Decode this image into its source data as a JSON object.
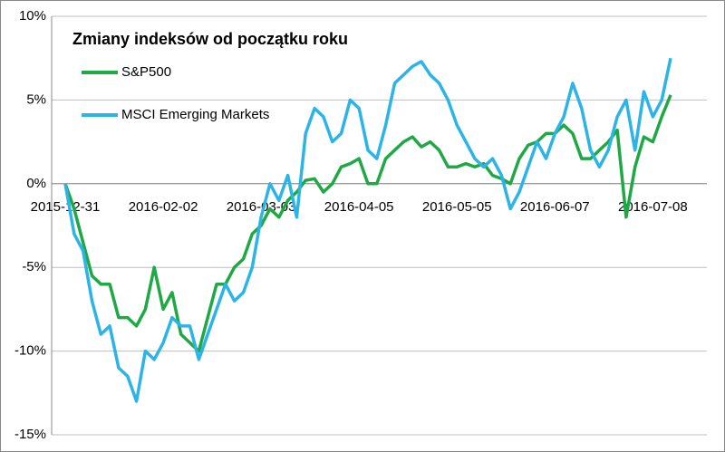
{
  "chart_data": {
    "type": "line",
    "title": "Zmiany indeksów od początku roku",
    "categories": [
      "2015-12-31",
      null,
      null,
      null,
      null,
      null,
      null,
      null,
      null,
      null,
      null,
      "2016-02-02",
      null,
      null,
      null,
      null,
      null,
      null,
      null,
      null,
      null,
      null,
      "2016-03-03",
      null,
      null,
      null,
      null,
      null,
      null,
      null,
      null,
      null,
      null,
      "2016-04-05",
      null,
      null,
      null,
      null,
      null,
      null,
      null,
      null,
      null,
      null,
      "2016-05-05",
      null,
      null,
      null,
      null,
      null,
      null,
      null,
      null,
      null,
      null,
      "2016-06-07",
      null,
      null,
      null,
      null,
      null,
      null,
      null,
      null,
      null,
      null,
      "2016-07-08",
      null,
      null
    ],
    "series": [
      {
        "name": "S&P500",
        "color": "#1fa845",
        "values": [
          0,
          -1.5,
          -3.5,
          -5.5,
          -6,
          -6,
          -8,
          -8,
          -8.5,
          -7.5,
          -5,
          -7.5,
          -6.5,
          -9,
          -9.5,
          -10,
          -8,
          -6,
          -6,
          -5,
          -4.5,
          -3,
          -2.5,
          -1.5,
          -2,
          -1,
          -0.5,
          0.2,
          0.3,
          -0.5,
          0,
          1,
          1.2,
          1.5,
          0,
          0,
          1.5,
          2,
          2.5,
          2.8,
          2.2,
          2.5,
          2,
          1,
          1,
          1.2,
          1,
          1.2,
          0.5,
          0.3,
          0,
          1.5,
          2.3,
          2.5,
          3,
          3,
          3.5,
          3,
          1.5,
          1.5,
          2,
          2.5,
          3.2,
          -2,
          1,
          2.8,
          2.5,
          4,
          5.3
        ]
      },
      {
        "name": "MSCI Emerging Markets",
        "color": "#2db4e6",
        "values": [
          0,
          -3,
          -4,
          -7,
          -9,
          -8.5,
          -11,
          -11.5,
          -13,
          -10,
          -10.5,
          -9.5,
          -8,
          -8.5,
          -8.5,
          -10.5,
          -9,
          -7.5,
          -6,
          -7,
          -6.5,
          -5,
          -2,
          0,
          -1,
          0.5,
          -2,
          3,
          4.5,
          4,
          2.5,
          3,
          5,
          4.5,
          2,
          1.5,
          3.5,
          6,
          6.5,
          7,
          7.3,
          6.5,
          6,
          5,
          3.5,
          2.5,
          1.5,
          1,
          1.5,
          0.5,
          -1.5,
          -0.5,
          1,
          2.5,
          1.5,
          3,
          4,
          6,
          4.5,
          2,
          1,
          2,
          4,
          5,
          2,
          5.5,
          4,
          5,
          7.5
        ]
      }
    ],
    "ylim": [
      -15,
      10
    ],
    "yticks": [
      {
        "value": -15,
        "label": "-15%"
      },
      {
        "value": -10,
        "label": "-10%"
      },
      {
        "value": -5,
        "label": "-5%"
      },
      {
        "value": 0,
        "label": "0%"
      },
      {
        "value": 5,
        "label": "5%"
      },
      {
        "value": 10,
        "label": "10%"
      }
    ],
    "grid": true
  }
}
